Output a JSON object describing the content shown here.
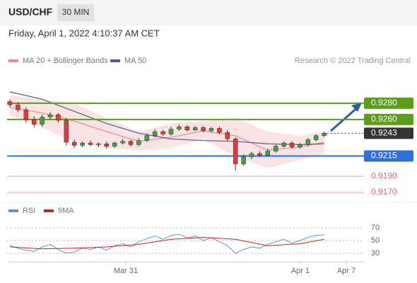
{
  "header": {
    "symbol": "USD/CHF",
    "interval": "30 MIN",
    "datetime": "Friday, April 1, 2022 4:10:37 AM CET"
  },
  "chart_data": {
    "type": "candlestick",
    "credit": "Research © 2022 Trading Central",
    "up_color": "#43a047",
    "down_color": "#e53935",
    "open": [
      0.9282,
      0.9278,
      0.9272,
      0.926,
      0.9254,
      0.9263,
      0.9266,
      0.9259,
      0.9232,
      0.9228,
      0.9231,
      0.9229,
      0.923,
      0.9227,
      0.9231,
      0.9233,
      0.9229,
      0.9234,
      0.924,
      0.9245,
      0.9242,
      0.9248,
      0.9251,
      0.9247,
      0.925,
      0.9246,
      0.9249,
      0.9244,
      0.9236,
      0.9205,
      0.9214,
      0.9218,
      0.9216,
      0.9221,
      0.9227,
      0.9231,
      0.9226,
      0.9229,
      0.9235,
      0.924
    ],
    "high": [
      0.9285,
      0.9281,
      0.9275,
      0.9264,
      0.9266,
      0.9269,
      0.9268,
      0.9262,
      0.9235,
      0.9233,
      0.9234,
      0.9232,
      0.9233,
      0.9233,
      0.9236,
      0.9235,
      0.9237,
      0.9243,
      0.9248,
      0.9247,
      0.9251,
      0.9254,
      0.9253,
      0.9252,
      0.9252,
      0.9251,
      0.9251,
      0.9247,
      0.9238,
      0.9217,
      0.922,
      0.9221,
      0.9224,
      0.9229,
      0.9233,
      0.9233,
      0.9231,
      0.9237,
      0.9242,
      0.9245
    ],
    "low": [
      0.9275,
      0.9269,
      0.9256,
      0.925,
      0.9251,
      0.926,
      0.9256,
      0.9228,
      0.9225,
      0.9226,
      0.9227,
      0.9226,
      0.9224,
      0.9225,
      0.9229,
      0.9227,
      0.9227,
      0.9232,
      0.9238,
      0.924,
      0.924,
      0.9246,
      0.9245,
      0.9246,
      0.9244,
      0.9244,
      0.9242,
      0.9233,
      0.9197,
      0.9203,
      0.9211,
      0.9214,
      0.9214,
      0.9219,
      0.9225,
      0.9224,
      0.9224,
      0.9227,
      0.9233,
      0.9238
    ],
    "close": [
      0.9278,
      0.9272,
      0.926,
      0.9254,
      0.9263,
      0.9266,
      0.9259,
      0.9232,
      0.9228,
      0.9231,
      0.9229,
      0.923,
      0.9227,
      0.9231,
      0.9233,
      0.9229,
      0.9234,
      0.924,
      0.9245,
      0.9242,
      0.9248,
      0.9251,
      0.9247,
      0.925,
      0.9246,
      0.9249,
      0.9244,
      0.9236,
      0.9205,
      0.9214,
      0.9218,
      0.9216,
      0.9221,
      0.9227,
      0.9231,
      0.9226,
      0.9229,
      0.9235,
      0.924,
      0.9243
    ],
    "ylim": [
      0.916,
      0.93
    ],
    "bands": {
      "color": "#f8d7da",
      "x": [
        0,
        4,
        8,
        12,
        16,
        20,
        24,
        28,
        32,
        36,
        39
      ],
      "upper": [
        0.929,
        0.9285,
        0.928,
        0.9262,
        0.9245,
        0.9255,
        0.9258,
        0.9262,
        0.9245,
        0.924,
        0.9245
      ],
      "lower": [
        0.9265,
        0.925,
        0.9232,
        0.9225,
        0.9222,
        0.9225,
        0.9235,
        0.9215,
        0.92,
        0.921,
        0.9218
      ]
    },
    "indicators": [
      {
        "name": "MA 20 + Bollinger Bands",
        "color": "#e88a94",
        "x": [
          0,
          4,
          8,
          12,
          16,
          20,
          24,
          28,
          32,
          36,
          39
        ],
        "values": [
          0.9275,
          0.9268,
          0.9258,
          0.9245,
          0.9233,
          0.9238,
          0.9246,
          0.924,
          0.9222,
          0.9226,
          0.9232
        ]
      },
      {
        "name": "MA 50",
        "color": "#4a5f8c",
        "x": [
          0,
          4,
          8,
          12,
          16,
          20,
          24,
          28,
          32,
          36,
          39
        ],
        "values": [
          0.9294,
          0.9285,
          0.927,
          0.9255,
          0.9243,
          0.9236,
          0.9234,
          0.9233,
          0.923,
          0.9229,
          0.923
        ]
      }
    ],
    "levels": [
      {
        "value": 0.928,
        "label": "0.9280",
        "color": "#5a9e1a",
        "style": "solid",
        "boxed": true
      },
      {
        "value": 0.926,
        "label": "0.9260",
        "color": "#5a9e1a",
        "style": "solid",
        "boxed": true
      },
      {
        "value": 0.9243,
        "label": "0.9243",
        "color": "#333333",
        "style": "dotted",
        "boxed": true
      },
      {
        "value": 0.9215,
        "label": "0.9215",
        "color": "#2f6fdb",
        "style": "solid",
        "boxed": true
      },
      {
        "value": 0.919,
        "label": "0.9190",
        "color": "#e06666",
        "style": "thin",
        "boxed": false
      },
      {
        "value": 0.917,
        "label": "0.9170",
        "color": "#e06666",
        "style": "thin",
        "boxed": false
      }
    ],
    "xlabels": [
      "Mar 31",
      "Apr 1",
      "Apr 7"
    ],
    "rsi": {
      "ylim": [
        20,
        80
      ],
      "yticks": [
        30,
        50,
        70
      ],
      "series": [
        {
          "name": "RSI",
          "color": "#6a8fd8",
          "values": [
            42,
            38,
            35,
            33,
            40,
            44,
            36,
            30,
            32,
            38,
            36,
            40,
            35,
            42,
            45,
            40,
            48,
            53,
            57,
            52,
            58,
            60,
            54,
            57,
            50,
            55,
            48,
            42,
            30,
            36,
            40,
            38,
            44,
            48,
            52,
            46,
            50,
            55,
            58,
            59
          ]
        },
        {
          "name": "9MA",
          "color": "#cc2222",
          "x": [
            0,
            4,
            8,
            12,
            16,
            20,
            24,
            28,
            32,
            36,
            39
          ],
          "values": [
            40,
            37,
            38,
            40,
            44,
            52,
            55,
            52,
            42,
            45,
            52
          ]
        }
      ]
    }
  }
}
